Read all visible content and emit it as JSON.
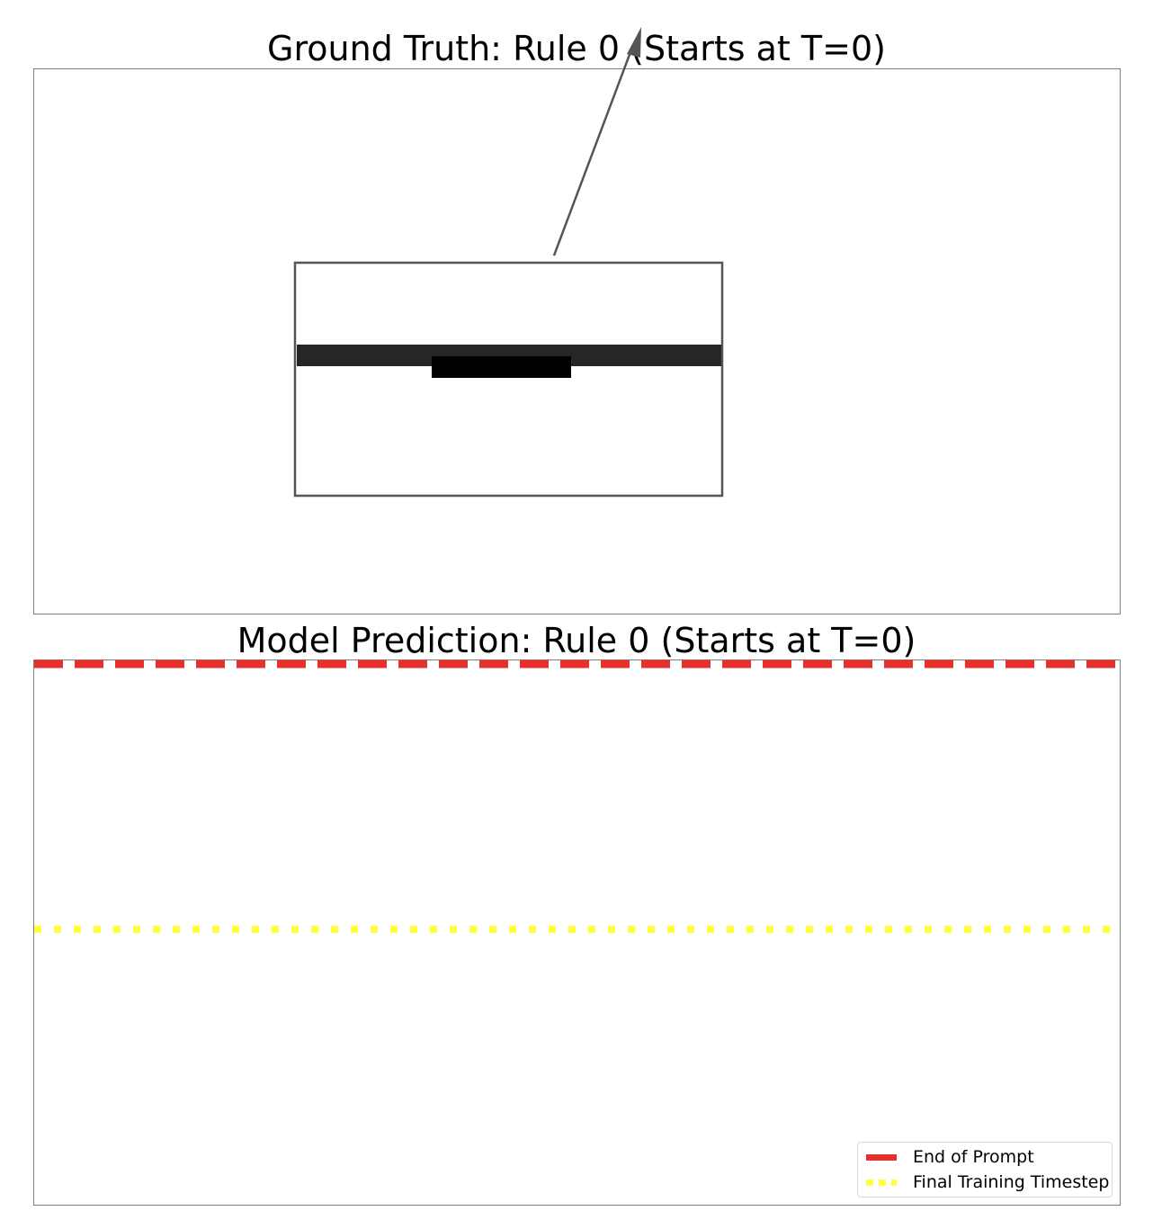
{
  "chart_data": [
    {
      "type": "other",
      "title": "Ground Truth: Rule 0 (Starts at T=0)",
      "xlabel": "",
      "ylabel": "",
      "grid": false,
      "elements": {
        "inset_box": {
          "stroke": "#555555",
          "fill": "#ffffff"
        },
        "horizontal_band": {
          "color": "#262626"
        },
        "center_block": {
          "color": "#000000"
        },
        "arrow": {
          "color": "#555555"
        }
      }
    },
    {
      "type": "line",
      "title": "Model Prediction: Rule 0 (Starts at T=0)",
      "xlabel": "",
      "ylabel": "",
      "grid": false,
      "legend_position": "bottom-right",
      "series": [
        {
          "name": "End of Prompt",
          "style": "dashed",
          "color": "#e8302a"
        },
        {
          "name": "Final Training Timestep",
          "style": "dotted",
          "color": "#ffff40"
        }
      ]
    }
  ]
}
